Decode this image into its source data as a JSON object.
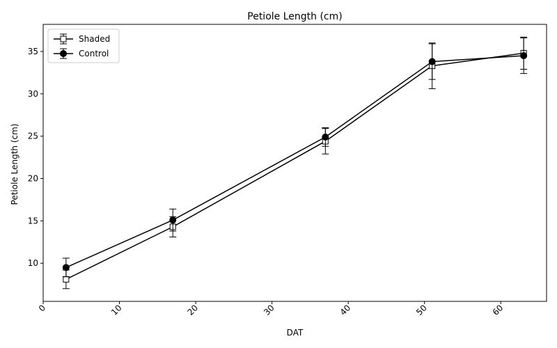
{
  "chart_data": {
    "type": "line",
    "title": "Petiole Length (cm)",
    "xlabel": "DAT",
    "ylabel": "Petiole Length (cm)",
    "xlim": [
      0,
      66
    ],
    "ylim": [
      5.5,
      38.2
    ],
    "xticks": [
      0,
      10,
      20,
      30,
      40,
      50,
      60
    ],
    "yticks": [
      10,
      15,
      20,
      25,
      30,
      35
    ],
    "xtick_rotation": 45,
    "grid": false,
    "legend_position": "upper-left",
    "series": [
      {
        "name": "Shaded",
        "marker": "square-open",
        "color": "#000000",
        "x": [
          3,
          17,
          37,
          51,
          63
        ],
        "y": [
          8.1,
          14.3,
          24.4,
          33.3,
          34.8
        ],
        "err": [
          1.1,
          1.2,
          1.5,
          2.7,
          1.9
        ]
      },
      {
        "name": "Control",
        "marker": "circle-filled",
        "color": "#000000",
        "x": [
          3,
          17,
          37,
          51,
          63
        ],
        "y": [
          9.5,
          15.1,
          24.9,
          33.8,
          34.5
        ],
        "err": [
          1.1,
          1.3,
          1.1,
          2.1,
          2.1
        ]
      }
    ]
  }
}
